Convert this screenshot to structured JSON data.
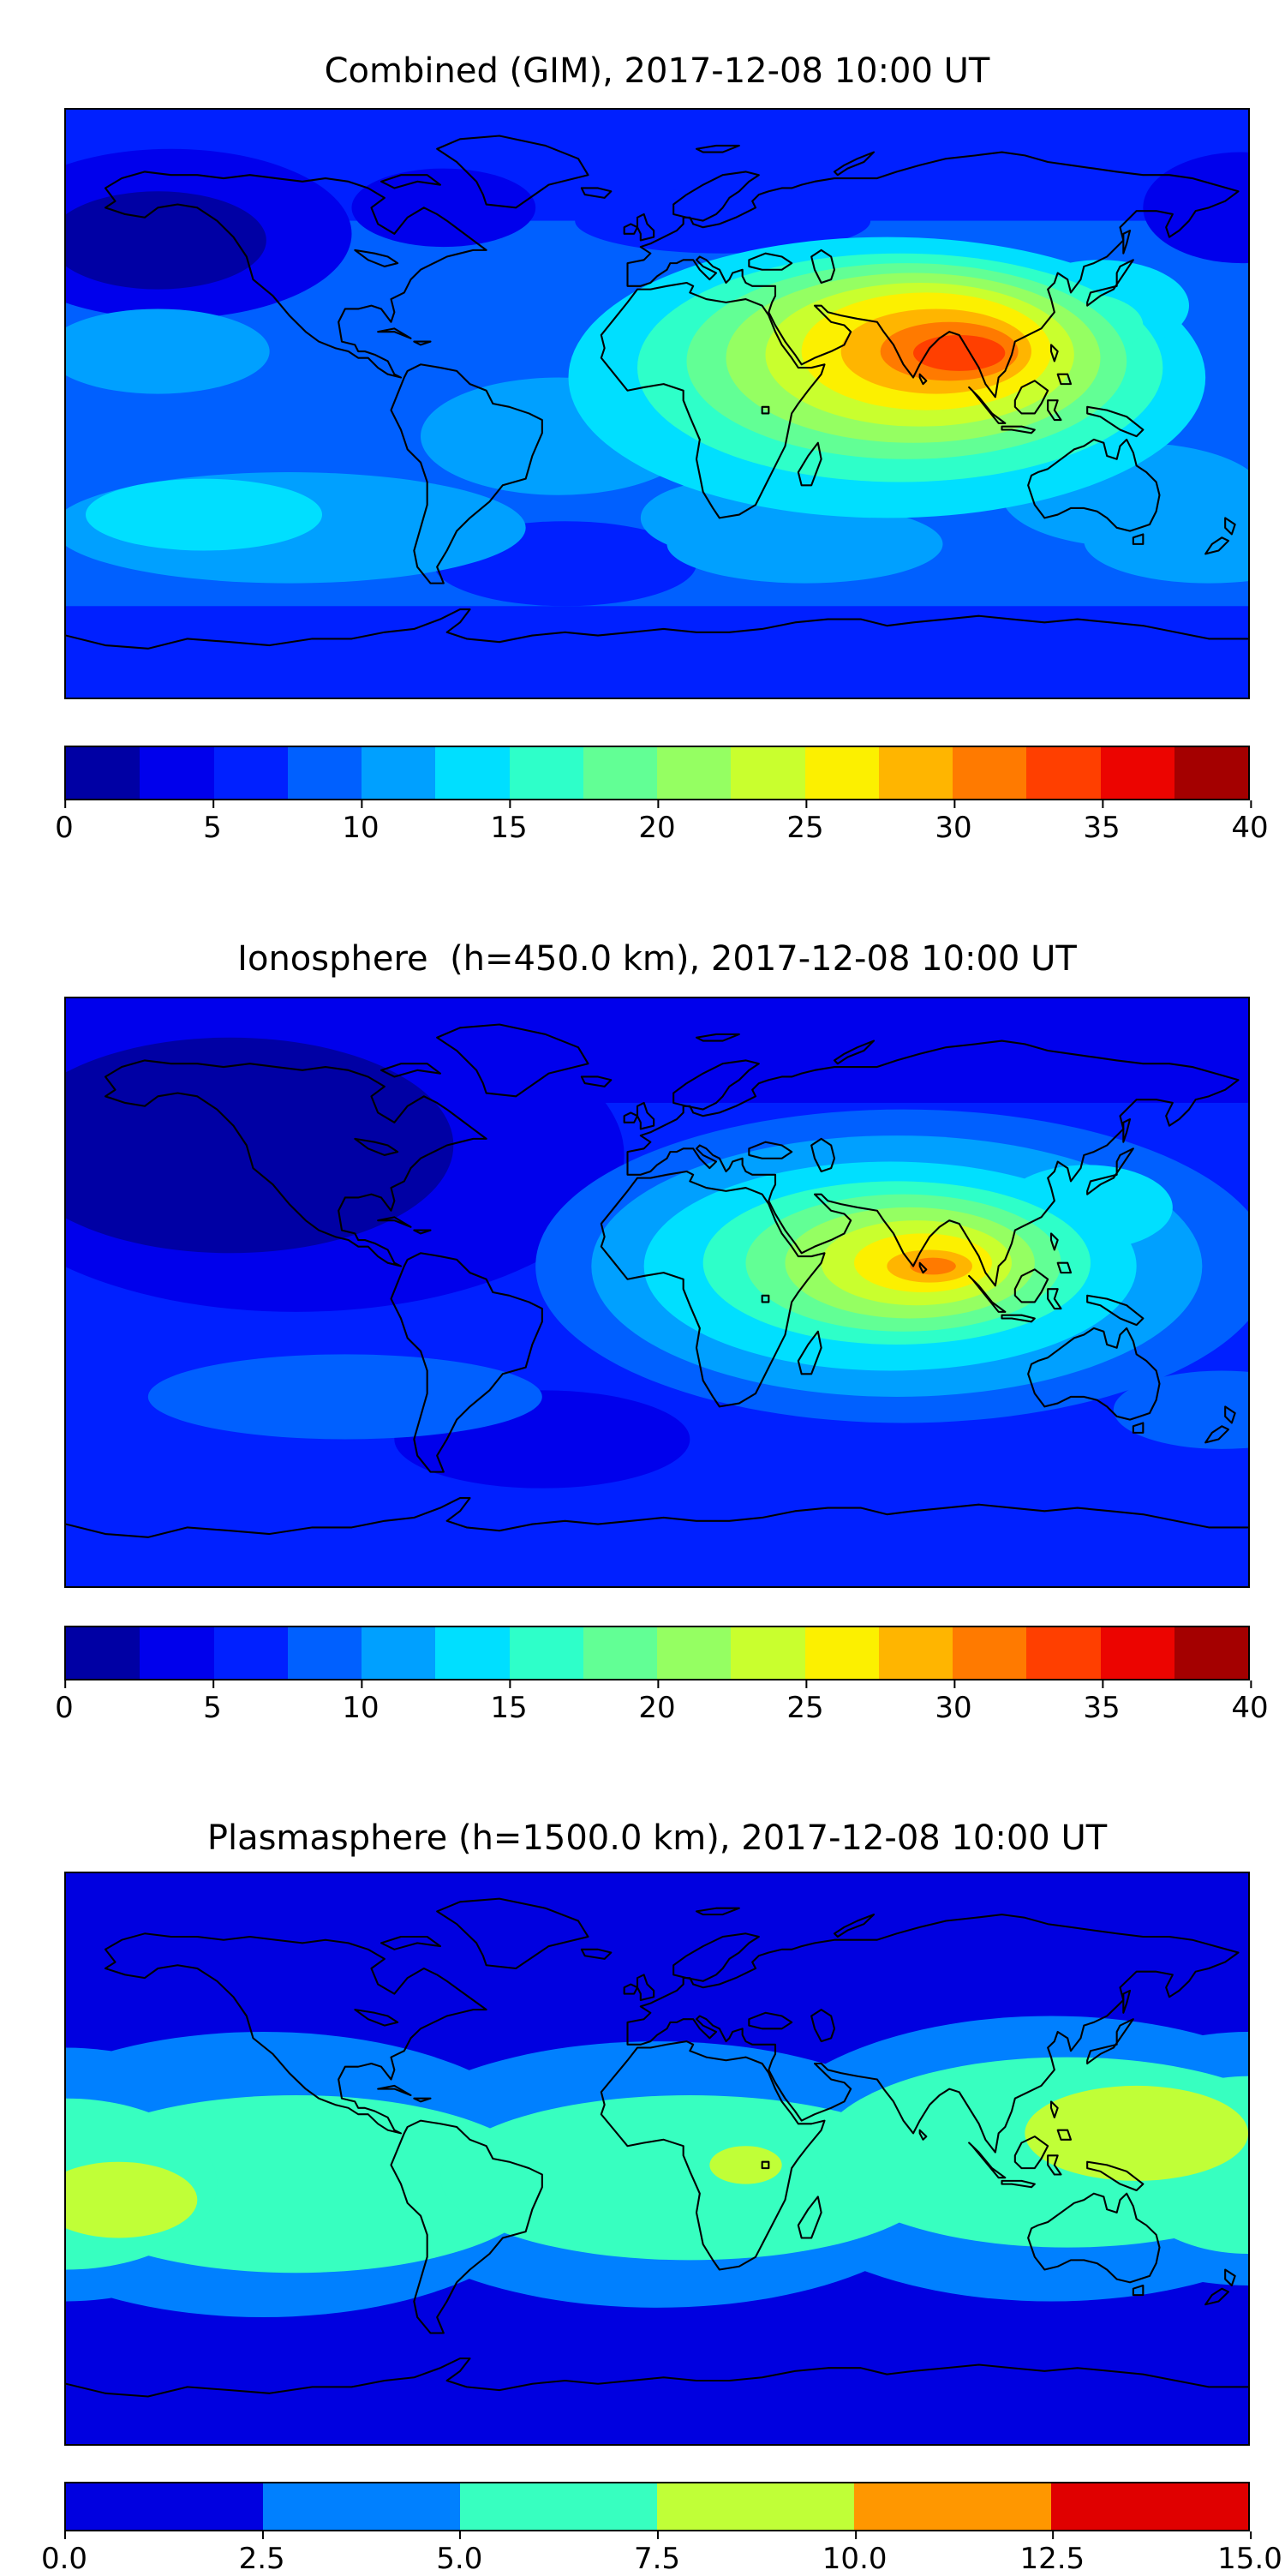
{
  "figure": {
    "background": "#ffffff",
    "text_color": "#000000"
  },
  "panels": [
    {
      "title": "Combined (GIM), 2017-12-08 10:00 UT",
      "colorbar": {
        "min": 0,
        "max": 40,
        "ticks": [
          "0",
          "5",
          "10",
          "15",
          "20",
          "25",
          "30",
          "35",
          "40"
        ],
        "colors": [
          "#0000A4",
          "#0000EC",
          "#0020FF",
          "#0060FF",
          "#00A0FF",
          "#00DFFF",
          "#2EFFC9",
          "#62FF95",
          "#95FF62",
          "#C9FF2E",
          "#FCF000",
          "#FFB500",
          "#FF7A00",
          "#FF3F00",
          "#EC0400",
          "#A40000"
        ]
      }
    },
    {
      "title": "Ionosphere  (h=450.0 km), 2017-12-08 10:00 UT",
      "colorbar": {
        "min": 0,
        "max": 40,
        "ticks": [
          "0",
          "5",
          "10",
          "15",
          "20",
          "25",
          "30",
          "35",
          "40"
        ],
        "colors": [
          "#0000A4",
          "#0000EC",
          "#0020FF",
          "#0060FF",
          "#00A0FF",
          "#00DFFF",
          "#2EFFC9",
          "#62FF95",
          "#95FF62",
          "#C9FF2E",
          "#FCF000",
          "#FFB500",
          "#FF7A00",
          "#FF3F00",
          "#EC0400",
          "#A40000"
        ]
      }
    },
    {
      "title": "Plasmasphere (h=1500.0 km), 2017-12-08 10:00 UT",
      "colorbar": {
        "min": 0,
        "max": 15,
        "ticks": [
          "0.0",
          "2.5",
          "5.0",
          "7.5",
          "10.0",
          "12.5",
          "15.0"
        ],
        "colors": [
          "#0000E0",
          "#0080FF",
          "#37FFC0",
          "#C0FF37",
          "#FF9700",
          "#E00000"
        ]
      }
    }
  ],
  "chart_data": [
    {
      "type": "heatmap",
      "style": "filled-contour-world-map",
      "title": "Combined (GIM), 2017-12-08 10:00 UT",
      "projection": "equirectangular",
      "lon_range": [
        -180,
        180
      ],
      "lat_range": [
        -90,
        90
      ],
      "colormap": "jet",
      "levels": [
        0,
        2.5,
        5,
        7.5,
        10,
        12.5,
        15,
        17.5,
        20,
        22.5,
        25,
        27.5,
        30,
        32.5,
        35,
        37.5,
        40
      ],
      "max_value_estimate": 36,
      "base_value": 8,
      "base_color": "#0060FF",
      "features": [
        {
          "kind": "band",
          "name": "north-polar-low",
          "lat_min": 56,
          "lat_max": 90,
          "value": 5,
          "color": "#0020FF"
        },
        {
          "kind": "band",
          "name": "south-polar-low",
          "lat_min": -90,
          "lat_max": -62,
          "value": 5,
          "color": "#0020FF"
        },
        {
          "name": "europe-low",
          "lon": 20,
          "lat": 56,
          "rx": 45,
          "ry": 10,
          "value": 5,
          "color": "#0020FF"
        },
        {
          "name": "npacific-dark",
          "lon": -148,
          "lat": 52,
          "rx": 55,
          "ry": 26,
          "value": 3,
          "color": "#0000EC"
        },
        {
          "name": "npacific-darkest",
          "lon": -152,
          "lat": 50,
          "rx": 33,
          "ry": 15,
          "value": 1,
          "color": "#0000A4"
        },
        {
          "name": "canada-dark",
          "lon": -65,
          "lat": 60,
          "rx": 28,
          "ry": 12,
          "value": 3,
          "color": "#0000EC"
        },
        {
          "name": "ne-corner-dark",
          "lon": 178,
          "lat": 60,
          "rx": 30,
          "ry": 17,
          "value": 3,
          "color": "#0000EC"
        },
        {
          "name": "satlantic-dark-patch",
          "lon": -28,
          "lat": -49,
          "rx": 40,
          "ry": 13,
          "value": 5,
          "color": "#0020FF"
        },
        {
          "name": "spacific-light-band",
          "lon": -112,
          "lat": -38,
          "rx": 72,
          "ry": 17,
          "value": 11,
          "color": "#00A0FF"
        },
        {
          "name": "spacific-cyan",
          "lon": -138,
          "lat": -34,
          "rx": 36,
          "ry": 11,
          "value": 14,
          "color": "#00DFFF"
        },
        {
          "name": "sindian-light",
          "lon": 45,
          "lat": -43,
          "rx": 42,
          "ry": 12,
          "value": 11,
          "color": "#00A0FF"
        },
        {
          "name": "safrica-light",
          "lon": 25,
          "lat": -35,
          "rx": 30,
          "ry": 12,
          "value": 11,
          "color": "#00A0FF"
        },
        {
          "name": "nz-light",
          "lon": 168,
          "lat": -42,
          "rx": 38,
          "ry": 13,
          "value": 11,
          "color": "#00A0FF"
        },
        {
          "name": "australia-light",
          "lon": 145,
          "lat": -28,
          "rx": 40,
          "ry": 16,
          "value": 11,
          "color": "#00A0FF"
        },
        {
          "name": "hawaii-light",
          "lon": -152,
          "lat": 16,
          "rx": 34,
          "ry": 13,
          "value": 11,
          "color": "#00A0FF"
        },
        {
          "name": "samerica-light",
          "lon": -30,
          "lat": -10,
          "rx": 42,
          "ry": 18,
          "value": 11,
          "color": "#00A0FF"
        },
        {
          "name": "hotspot-cyan",
          "lon": 70,
          "lat": 8,
          "rx": 97,
          "ry": 43,
          "value": 14,
          "color": "#00DFFF"
        },
        {
          "name": "japan-cyan",
          "lon": 135,
          "lat": 30,
          "rx": 27,
          "ry": 14,
          "value": 14,
          "color": "#00DFFF"
        },
        {
          "name": "hotspot-turquoise",
          "lon": 74,
          "lat": 11,
          "rx": 80,
          "ry": 35,
          "value": 16,
          "color": "#2EFFC9"
        },
        {
          "name": "eastasia-turquoise",
          "lon": 128,
          "lat": 24,
          "rx": 20,
          "ry": 10,
          "value": 16,
          "color": "#2EFFC9"
        },
        {
          "name": "hotspot-green",
          "lon": 76,
          "lat": 13,
          "rx": 67,
          "ry": 30,
          "value": 19,
          "color": "#62FF95"
        },
        {
          "name": "hotspot-yellowgreen",
          "lon": 78,
          "lat": 14,
          "rx": 57,
          "ry": 26,
          "value": 21,
          "color": "#95FF62"
        },
        {
          "name": "hotspot-greenyellow",
          "lon": 80,
          "lat": 15,
          "rx": 47,
          "ry": 22,
          "value": 24,
          "color": "#C9FF2E"
        },
        {
          "name": "hotspot-yellow",
          "lon": 82,
          "lat": 16,
          "rx": 38,
          "ry": 18,
          "value": 26,
          "color": "#FCF000"
        },
        {
          "name": "hotspot-orange",
          "lon": 85,
          "lat": 16,
          "rx": 29,
          "ry": 13,
          "value": 29,
          "color": "#FFB500"
        },
        {
          "name": "hotspot-deeporange",
          "lon": 89,
          "lat": 16,
          "rx": 21,
          "ry": 9,
          "value": 31,
          "color": "#FF7A00"
        },
        {
          "name": "hotspot-core-red",
          "lon": 92,
          "lat": 15.5,
          "rx": 14,
          "ry": 5.5,
          "value": 34,
          "color": "#FF3F00"
        }
      ]
    },
    {
      "type": "heatmap",
      "style": "filled-contour-world-map",
      "title": "Ionosphere  (h=450.0 km), 2017-12-08 10:00 UT",
      "projection": "equirectangular",
      "lon_range": [
        -180,
        180
      ],
      "lat_range": [
        -90,
        90
      ],
      "colormap": "jet",
      "levels": [
        0,
        2.5,
        5,
        7.5,
        10,
        12.5,
        15,
        17.5,
        20,
        22.5,
        25,
        27.5,
        30,
        32.5,
        35,
        37.5,
        40
      ],
      "max_value_estimate": 31,
      "base_value": 6,
      "base_color": "#0020FF",
      "features": [
        {
          "kind": "band",
          "name": "north-polar-dark",
          "lat_min": 58,
          "lat_max": 90,
          "value": 3,
          "color": "#0000EC"
        },
        {
          "name": "namerica-dark",
          "lon": -110,
          "lat": 42,
          "rx": 100,
          "ry": 48,
          "value": 3,
          "color": "#0000EC"
        },
        {
          "name": "namerica-darkest",
          "lon": -130,
          "lat": 45,
          "rx": 68,
          "ry": 33,
          "value": 1,
          "color": "#0000A4"
        },
        {
          "name": "satlantic-dark",
          "lon": -35,
          "lat": -45,
          "rx": 45,
          "ry": 15,
          "value": 3,
          "color": "#0000EC"
        },
        {
          "name": "spacific-light",
          "lon": -95,
          "lat": -32,
          "rx": 60,
          "ry": 13,
          "value": 8,
          "color": "#0060FF"
        },
        {
          "name": "nz-light",
          "lon": 172,
          "lat": -36,
          "rx": 33,
          "ry": 12,
          "value": 8,
          "color": "#0060FF"
        },
        {
          "name": "hotspot-outer",
          "lon": 75,
          "lat": 8,
          "rx": 112,
          "ry": 48,
          "value": 8,
          "color": "#0060FF"
        },
        {
          "name": "hotspot-lightblue",
          "lon": 73,
          "lat": 8,
          "rx": 93,
          "ry": 40,
          "value": 11,
          "color": "#00A0FF"
        },
        {
          "name": "hotspot-cyan",
          "lon": 71,
          "lat": 8,
          "rx": 75,
          "ry": 32,
          "value": 14,
          "color": "#00DFFF"
        },
        {
          "name": "japan-cyan",
          "lon": 131,
          "lat": 26,
          "rx": 26,
          "ry": 13,
          "value": 14,
          "color": "#00DFFF"
        },
        {
          "name": "hotspot-turquoise",
          "lon": 73,
          "lat": 9,
          "rx": 59,
          "ry": 25,
          "value": 16,
          "color": "#2EFFC9"
        },
        {
          "name": "hotspot-green",
          "lon": 75,
          "lat": 9,
          "rx": 48,
          "ry": 21,
          "value": 19,
          "color": "#62FF95"
        },
        {
          "name": "hotspot-yellowgreen",
          "lon": 77,
          "lat": 9,
          "rx": 38,
          "ry": 17,
          "value": 21,
          "color": "#95FF62"
        },
        {
          "name": "hotspot-greenyellow",
          "lon": 79,
          "lat": 9,
          "rx": 29,
          "ry": 13,
          "value": 24,
          "color": "#C9FF2E"
        },
        {
          "name": "hotspot-yellow",
          "lon": 81,
          "lat": 9,
          "rx": 21,
          "ry": 9,
          "value": 26,
          "color": "#FCF000"
        },
        {
          "name": "hotspot-orange",
          "lon": 83,
          "lat": 8,
          "rx": 13,
          "ry": 5,
          "value": 29,
          "color": "#FFB500"
        },
        {
          "name": "hotspot-core",
          "lon": 84,
          "lat": 8,
          "rx": 7,
          "ry": 2.6,
          "value": 31,
          "color": "#FF7A00"
        }
      ]
    },
    {
      "type": "heatmap",
      "style": "filled-contour-world-map",
      "title": "Plasmasphere (h=1500.0 km), 2017-12-08 10:00 UT",
      "projection": "equirectangular",
      "lon_range": [
        -180,
        180
      ],
      "lat_range": [
        -90,
        90
      ],
      "colormap": "jet",
      "levels": [
        0,
        2.5,
        5,
        7.5,
        10,
        12.5,
        15
      ],
      "max_value_estimate": 9,
      "base_value": 2,
      "base_color": "#0000E0",
      "features": [
        {
          "name": "midlat-band-west",
          "lon": -120,
          "lat": -5,
          "rx": 92,
          "ry": 45,
          "value": 4,
          "color": "#0080FF"
        },
        {
          "name": "midlat-band-center",
          "lon": 0,
          "lat": -5,
          "rx": 92,
          "ry": 42,
          "value": 4,
          "color": "#0080FF"
        },
        {
          "name": "midlat-band-east",
          "lon": 120,
          "lat": 0,
          "rx": 92,
          "ry": 45,
          "value": 4,
          "color": "#0080FF"
        },
        {
          "name": "midlat-band-edge-right",
          "lon": 180,
          "lat": 0,
          "rx": 60,
          "ry": 40,
          "value": 4,
          "color": "#0080FF"
        },
        {
          "name": "midlat-band-edge-left",
          "lon": -180,
          "lat": -5,
          "rx": 60,
          "ry": 40,
          "value": 4,
          "color": "#0080FF"
        },
        {
          "name": "equator-turquoise-west",
          "lon": -110,
          "lat": -8,
          "rx": 76,
          "ry": 28,
          "value": 6,
          "color": "#37FFC0"
        },
        {
          "name": "equator-turquoise-center",
          "lon": 10,
          "lat": -6,
          "rx": 76,
          "ry": 26,
          "value": 6,
          "color": "#37FFC0"
        },
        {
          "name": "equator-turquoise-east",
          "lon": 125,
          "lat": 2,
          "rx": 76,
          "ry": 30,
          "value": 6,
          "color": "#37FFC0"
        },
        {
          "name": "equator-turquoise-edge-left",
          "lon": -180,
          "lat": -8,
          "rx": 46,
          "ry": 27,
          "value": 6,
          "color": "#37FFC0"
        },
        {
          "name": "equator-turquoise-edge-right",
          "lon": 180,
          "lat": -2,
          "rx": 40,
          "ry": 28,
          "value": 6,
          "color": "#37FFC0"
        },
        {
          "name": "pacific-west-max",
          "lon": -164,
          "lat": -13,
          "rx": 24,
          "ry": 12,
          "value": 9,
          "color": "#C0FF37"
        },
        {
          "name": "wpacific-max",
          "lon": 146,
          "lat": 8,
          "rx": 34,
          "ry": 15,
          "value": 9,
          "color": "#C0FF37"
        },
        {
          "name": "africa-max",
          "lon": 27,
          "lat": -2,
          "rx": 11,
          "ry": 6,
          "value": 9,
          "color": "#C0FF37"
        }
      ]
    }
  ]
}
